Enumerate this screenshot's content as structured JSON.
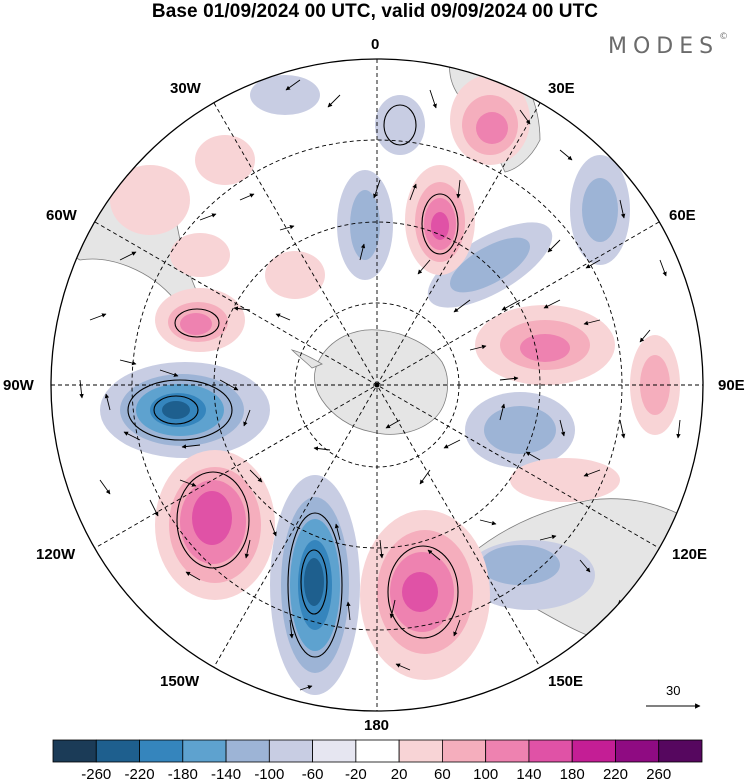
{
  "title": "Base 01/09/2024 00 UTC, valid 09/09/2024 00 UTC",
  "brand": {
    "name": "MODES",
    "mark": "©"
  },
  "longitude_labels": {
    "lon_0": "0",
    "lon_30e": "30E",
    "lon_60e": "60E",
    "lon_90e": "90E",
    "lon_120e": "120E",
    "lon_150e": "150E",
    "lon_180": "180",
    "lon_150w": "150W",
    "lon_120w": "120W",
    "lon_90w": "90W",
    "lon_60w": "60W",
    "lon_30w": "30W"
  },
  "reference_vector": {
    "label": "30"
  },
  "colorbar": {
    "labels": [
      "-260",
      "-220",
      "-180",
      "-140",
      "-100",
      "-60",
      "-20",
      "20",
      "60",
      "100",
      "140",
      "180",
      "220",
      "260"
    ],
    "colors": [
      "#1b3b57",
      "#1e5f8e",
      "#3585bd",
      "#5ea2cf",
      "#9db4d6",
      "#c8cde3",
      "#e6e6f1",
      "#ffffff",
      "#f8d4d6",
      "#f5aebd",
      "#ee82b0",
      "#e052a6",
      "#c41e95",
      "#8f0b82",
      "#56075f"
    ]
  }
}
